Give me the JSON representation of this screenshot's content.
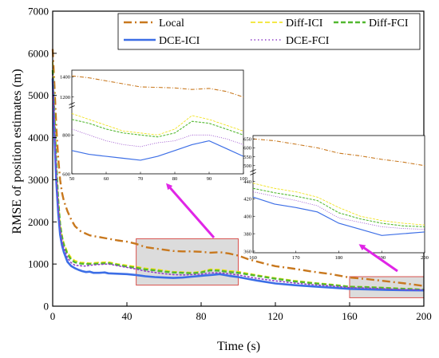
{
  "chart_data": {
    "type": "line",
    "xlabel": "Time (s)",
    "ylabel": "RMSE of position estimates (m)",
    "xlim": [
      0,
      200
    ],
    "ylim": [
      0,
      7000
    ],
    "xticks": [
      0,
      40,
      80,
      120,
      160,
      200
    ],
    "yticks": [
      0,
      1000,
      2000,
      3000,
      4000,
      5000,
      6000,
      7000
    ],
    "legend_position": "top-right",
    "grid": false,
    "series": [
      {
        "name": "Local",
        "color": "#c8781e",
        "dash": "dashdot",
        "width": 2.4,
        "x": [
          0,
          1,
          2,
          3,
          4,
          5,
          6,
          8,
          10,
          12,
          15,
          18,
          20,
          25,
          30,
          35,
          40,
          45,
          50,
          55,
          60,
          65,
          70,
          75,
          80,
          85,
          90,
          95,
          100,
          105,
          110,
          115,
          120,
          130,
          140,
          150,
          160,
          170,
          180,
          190,
          200
        ],
        "y": [
          6100,
          5200,
          4200,
          3500,
          3000,
          2700,
          2500,
          2250,
          2050,
          1900,
          1780,
          1720,
          1680,
          1640,
          1600,
          1560,
          1530,
          1480,
          1400,
          1370,
          1340,
          1310,
          1300,
          1300,
          1290,
          1270,
          1280,
          1250,
          1200,
          1120,
          1060,
          1000,
          950,
          890,
          820,
          760,
          680,
          640,
          590,
          540,
          480
        ]
      },
      {
        "name": "Diff-ICI",
        "color": "#f0e00a",
        "dash": "dash",
        "width": 1.6,
        "x": [
          0,
          1,
          2,
          3,
          4,
          5,
          6,
          8,
          10,
          12,
          15,
          18,
          20,
          25,
          30,
          35,
          40,
          45,
          50,
          55,
          60,
          65,
          70,
          75,
          80,
          85,
          90,
          95,
          100,
          110,
          120,
          130,
          140,
          150,
          160,
          170,
          180,
          190,
          200
        ],
        "y": [
          5800,
          4700,
          3400,
          2600,
          2000,
          1700,
          1500,
          1280,
          1150,
          1080,
          1040,
          1030,
          1020,
          1040,
          1050,
          1000,
          970,
          940,
          900,
          880,
          850,
          820,
          810,
          800,
          820,
          880,
          870,
          840,
          820,
          740,
          670,
          610,
          560,
          520,
          470,
          460,
          440,
          420,
          400
        ]
      },
      {
        "name": "Diff-FCI",
        "color": "#52b830",
        "dash": "dash",
        "width": 2.4,
        "x": [
          0,
          1,
          2,
          3,
          4,
          5,
          6,
          8,
          10,
          12,
          15,
          18,
          20,
          25,
          30,
          35,
          40,
          45,
          50,
          55,
          60,
          65,
          70,
          75,
          80,
          85,
          90,
          95,
          100,
          110,
          120,
          130,
          140,
          150,
          160,
          170,
          180,
          190,
          200
        ],
        "y": [
          5600,
          4500,
          3300,
          2500,
          1950,
          1650,
          1450,
          1230,
          1100,
          1040,
          1010,
          1000,
          1000,
          1010,
          1020,
          980,
          940,
          910,
          870,
          850,
          820,
          800,
          790,
          780,
          800,
          850,
          840,
          810,
          790,
          720,
          650,
          590,
          545,
          505,
          460,
          450,
          430,
          410,
          390
        ]
      },
      {
        "name": "DCE-ICI",
        "color": "#3c6ee6",
        "dash": "solid",
        "width": 2.6,
        "x": [
          0,
          1,
          2,
          3,
          4,
          5,
          6,
          8,
          10,
          12,
          14,
          16,
          18,
          20,
          22,
          25,
          28,
          30,
          35,
          40,
          45,
          50,
          55,
          60,
          65,
          70,
          75,
          80,
          85,
          90,
          95,
          100,
          110,
          120,
          130,
          140,
          150,
          160,
          170,
          180,
          190,
          200
        ],
        "y": [
          5400,
          4000,
          2900,
          2200,
          1700,
          1450,
          1280,
          1050,
          950,
          900,
          860,
          830,
          810,
          820,
          790,
          790,
          800,
          780,
          770,
          760,
          740,
          710,
          690,
          680,
          670,
          680,
          700,
          720,
          740,
          760,
          720,
          690,
          610,
          540,
          500,
          470,
          440,
          410,
          400,
          385,
          380,
          375
        ]
      },
      {
        "name": "DCE-FCI",
        "color": "#9040c8",
        "dash": "dot",
        "width": 1.6,
        "x": [
          0,
          1,
          2,
          3,
          4,
          5,
          6,
          8,
          10,
          12,
          15,
          18,
          20,
          25,
          30,
          35,
          40,
          45,
          50,
          55,
          60,
          65,
          70,
          75,
          80,
          85,
          90,
          95,
          100,
          110,
          120,
          130,
          140,
          150,
          160,
          170,
          180,
          190,
          200
        ],
        "y": [
          5500,
          4300,
          3100,
          2350,
          1850,
          1550,
          1380,
          1140,
          1030,
          970,
          960,
          950,
          970,
          990,
          1000,
          960,
          920,
          880,
          830,
          800,
          770,
          750,
          740,
          750,
          760,
          790,
          790,
          770,
          740,
          660,
          600,
          550,
          510,
          480,
          440,
          430,
          410,
          390,
          385
        ]
      }
    ],
    "zoom_regions": [
      {
        "x": [
          45,
          100
        ],
        "y": [
          500,
          1600
        ]
      },
      {
        "x": [
          160,
          200
        ],
        "y": [
          200,
          700
        ]
      }
    ],
    "insets": [
      {
        "xlim": [
          50,
          100
        ],
        "xticks": [
          50,
          60,
          70,
          80,
          90,
          100
        ],
        "yticks_lower": [
          600,
          800
        ],
        "yticks_upper": [
          1200,
          1400
        ],
        "axis_break": true,
        "series": [
          {
            "name": "Local",
            "x": [
              50,
              55,
              60,
              65,
              70,
              75,
              80,
              85,
              90,
              95,
              100
            ],
            "y": [
              1410,
              1390,
              1360,
              1330,
              1300,
              1295,
              1290,
              1275,
              1285,
              1255,
              1200
            ]
          },
          {
            "name": "Diff-ICI",
            "x": [
              50,
              55,
              60,
              65,
              70,
              75,
              80,
              85,
              90,
              95,
              100
            ],
            "y": [
              910,
              880,
              850,
              820,
              810,
              800,
              830,
              900,
              880,
              850,
              820
            ]
          },
          {
            "name": "Diff-FCI",
            "x": [
              50,
              55,
              60,
              65,
              70,
              75,
              80,
              85,
              90,
              95,
              100
            ],
            "y": [
              880,
              860,
              830,
              810,
              800,
              790,
              810,
              870,
              860,
              830,
              800
            ]
          },
          {
            "name": "DCE-ICI",
            "x": [
              50,
              55,
              60,
              65,
              70,
              75,
              80,
              85,
              90,
              95,
              100
            ],
            "y": [
              720,
              700,
              690,
              680,
              670,
              690,
              720,
              750,
              770,
              730,
              690
            ]
          },
          {
            "name": "DCE-FCI",
            "x": [
              50,
              55,
              60,
              65,
              70,
              75,
              80,
              85,
              90,
              95,
              100
            ],
            "y": [
              830,
              800,
              770,
              750,
              740,
              760,
              770,
              800,
              800,
              780,
              750
            ]
          }
        ]
      },
      {
        "xlim": [
          160,
          200
        ],
        "ylim": [
          360,
          660
        ],
        "xticks": [
          160,
          170,
          180,
          190,
          200
        ],
        "yticks_lower": [
          360,
          380,
          400,
          420,
          440
        ],
        "yticks_upper": [
          500,
          550,
          600,
          650
        ],
        "axis_break": true,
        "series": [
          {
            "name": "Local",
            "x": [
              160,
              165,
              170,
              175,
              180,
              185,
              190,
              195,
              200
            ],
            "y": [
              650,
              640,
              620,
              600,
              570,
              555,
              535,
              520,
              500
            ]
          },
          {
            "name": "Diff-ICI",
            "x": [
              160,
              165,
              170,
              175,
              180,
              185,
              190,
              195,
              200
            ],
            "y": [
              438,
              432,
              428,
              422,
              410,
              400,
              395,
              392,
              390
            ]
          },
          {
            "name": "Diff-FCI",
            "x": [
              160,
              165,
              170,
              175,
              180,
              185,
              190,
              195,
              200
            ],
            "y": [
              432,
              427,
              423,
              418,
              404,
              397,
              392,
              389,
              388
            ]
          },
          {
            "name": "DCE-ICI",
            "x": [
              160,
              165,
              170,
              175,
              180,
              185,
              190,
              195,
              200
            ],
            "y": [
              422,
              414,
              410,
              405,
              392,
              385,
              378,
              380,
              382
            ]
          },
          {
            "name": "DCE-FCI",
            "x": [
              160,
              165,
              170,
              175,
              180,
              185,
              190,
              195,
              200
            ],
            "y": [
              428,
              423,
              418,
              412,
              398,
              393,
              388,
              386,
              385
            ]
          }
        ]
      }
    ]
  }
}
